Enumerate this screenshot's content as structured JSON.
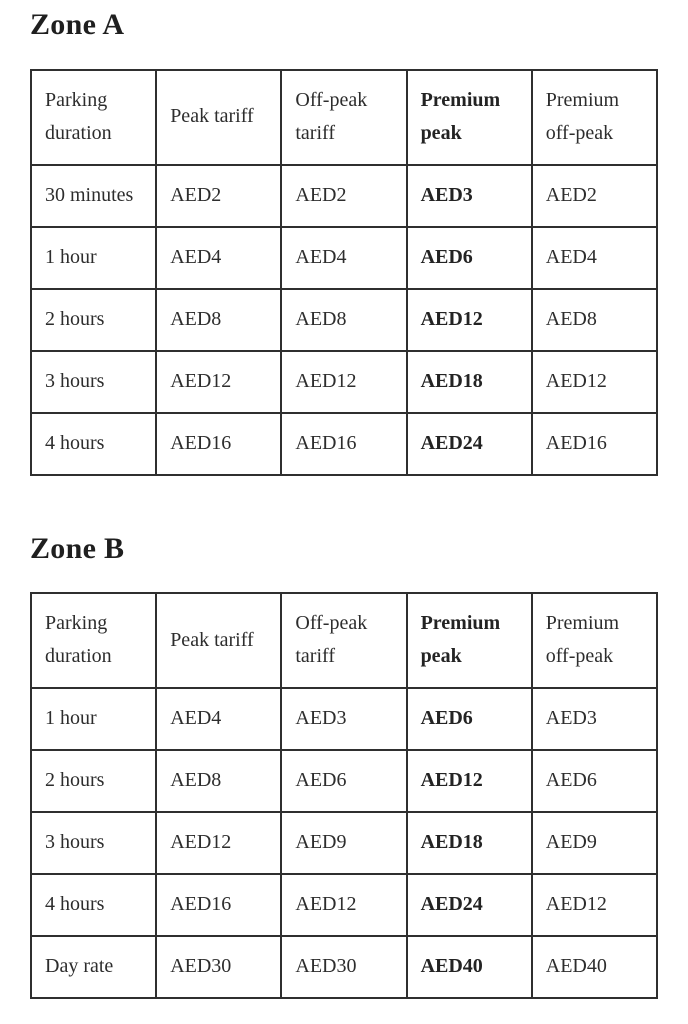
{
  "colors": {
    "background": "#ffffff",
    "text": "#2d2d2d",
    "heading": "#1f1f1f",
    "table_border": "#2f2f2f"
  },
  "zones": [
    {
      "title": "Zone A",
      "headers": [
        "Parking duration",
        "Peak tariff",
        "Off-peak tariff",
        "Premium peak",
        "Premium off-peak"
      ],
      "rows": [
        [
          "30 minutes",
          "AED2",
          "AED2",
          "AED3",
          "AED2"
        ],
        [
          "1 hour",
          "AED4",
          "AED4",
          "AED6",
          "AED4"
        ],
        [
          "2 hours",
          "AED8",
          "AED8",
          "AED12",
          "AED8"
        ],
        [
          "3 hours",
          "AED12",
          "AED12",
          "AED18",
          "AED12"
        ],
        [
          "4 hours",
          "AED16",
          "AED16",
          "AED24",
          "AED16"
        ]
      ]
    },
    {
      "title": "Zone B",
      "headers": [
        "Parking duration",
        "Peak tariff",
        "Off-peak tariff",
        "Premium peak",
        "Premium off-peak"
      ],
      "rows": [
        [
          "1 hour",
          "AED4",
          "AED3",
          "AED6",
          "AED3"
        ],
        [
          "2 hours",
          "AED8",
          "AED6",
          "AED12",
          "AED6"
        ],
        [
          "3 hours",
          "AED12",
          "AED9",
          "AED18",
          "AED9"
        ],
        [
          "4 hours",
          "AED16",
          "AED12",
          "AED24",
          "AED12"
        ],
        [
          "Day rate",
          "AED30",
          "AED30",
          "AED40",
          "AED40"
        ]
      ]
    }
  ]
}
